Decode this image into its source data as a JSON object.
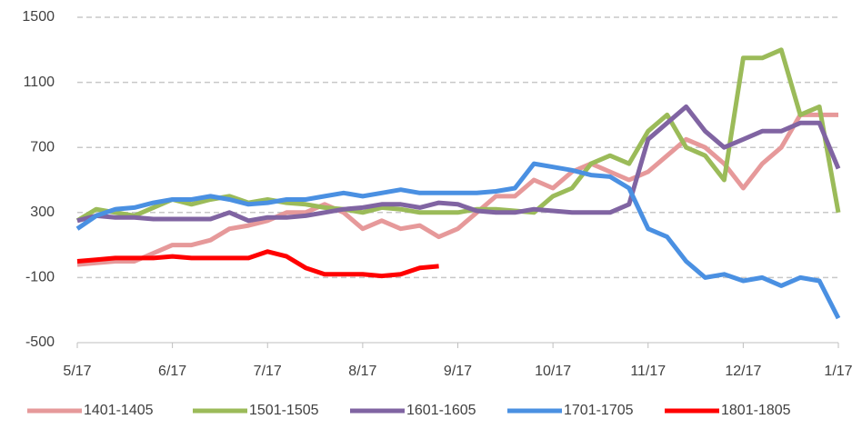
{
  "chart_data": {
    "type": "line",
    "categories": [
      "5/17",
      null,
      null,
      null,
      null,
      "6/17",
      null,
      null,
      null,
      null,
      "7/17",
      null,
      null,
      null,
      null,
      "8/17",
      null,
      null,
      null,
      null,
      "9/17",
      null,
      null,
      null,
      null,
      "10/17",
      null,
      null,
      null,
      null,
      "11/17",
      null,
      null,
      null,
      null,
      "12/17",
      null,
      null,
      null,
      null,
      "1/17"
    ],
    "ylim": [
      -500,
      1500
    ],
    "yticks": [
      -500,
      -100,
      300,
      700,
      1100,
      1500
    ],
    "grid": true,
    "legend": "bottom",
    "series": [
      {
        "name": "1401-1405",
        "color": "#e6999a",
        "values": [
          -20,
          -10,
          0,
          0,
          50,
          100,
          100,
          130,
          200,
          220,
          250,
          300,
          300,
          350,
          300,
          200,
          250,
          200,
          220,
          150,
          200,
          300,
          400,
          400,
          500,
          450,
          550,
          600,
          550,
          500,
          550,
          650,
          750,
          700,
          600,
          450,
          600,
          700,
          900,
          900,
          900
        ]
      },
      {
        "name": "1501-1505",
        "color": "#9bbb59",
        "values": [
          250,
          320,
          300,
          280,
          330,
          380,
          350,
          380,
          400,
          360,
          380,
          360,
          350,
          330,
          320,
          300,
          330,
          320,
          300,
          300,
          300,
          320,
          320,
          310,
          300,
          400,
          450,
          600,
          650,
          600,
          800,
          900,
          700,
          650,
          500,
          1250,
          1250,
          1300,
          900,
          950,
          300
        ]
      },
      {
        "name": "1601-1605",
        "color": "#8064a2",
        "values": [
          250,
          280,
          270,
          270,
          260,
          260,
          260,
          260,
          300,
          250,
          270,
          270,
          280,
          300,
          320,
          330,
          350,
          350,
          330,
          360,
          350,
          310,
          300,
          300,
          320,
          310,
          300,
          300,
          300,
          350,
          750,
          850,
          950,
          800,
          700,
          750,
          800,
          800,
          850,
          850,
          570
        ]
      },
      {
        "name": "1701-1705",
        "color": "#4a90e2",
        "values": [
          200,
          280,
          320,
          330,
          360,
          380,
          380,
          400,
          380,
          350,
          360,
          380,
          380,
          400,
          420,
          400,
          420,
          440,
          420,
          420,
          420,
          420,
          430,
          450,
          600,
          580,
          560,
          530,
          520,
          450,
          200,
          150,
          0,
          -100,
          -80,
          -120,
          -100,
          -150,
          -100,
          -120,
          -350
        ]
      },
      {
        "name": "1801-1805",
        "color": "#ff0000",
        "values": [
          0,
          10,
          20,
          20,
          20,
          30,
          20,
          20,
          20,
          20,
          60,
          30,
          -40,
          -80,
          -80,
          -80,
          -90,
          -80,
          -40,
          -30,
          null,
          null,
          null,
          null,
          null,
          null,
          null,
          null,
          null,
          null,
          null,
          null,
          null,
          null,
          null,
          null,
          null,
          null,
          null,
          null,
          null
        ]
      }
    ]
  }
}
